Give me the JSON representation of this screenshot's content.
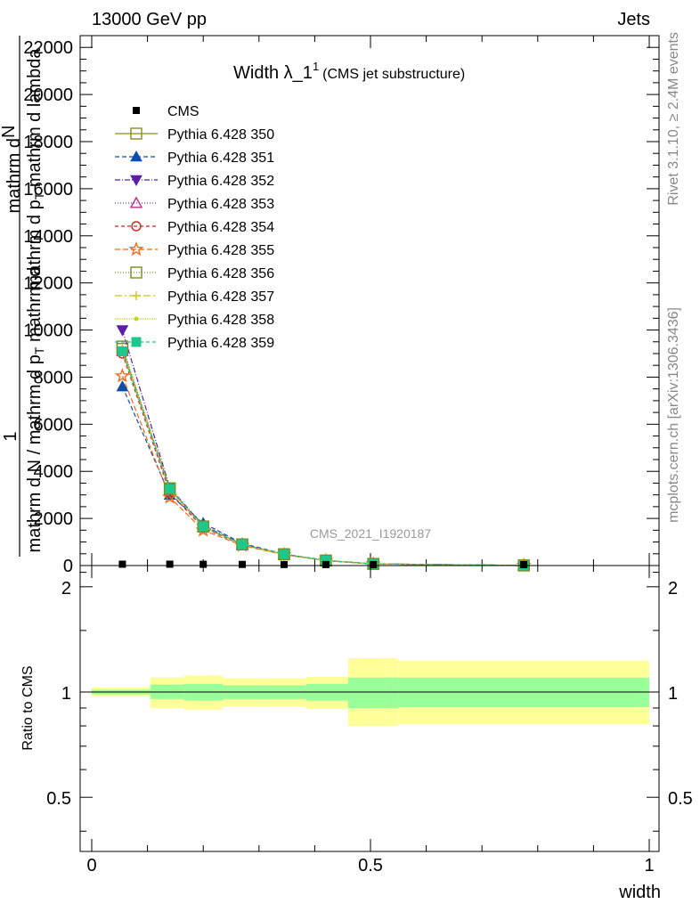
{
  "header": {
    "left": "13000 GeV pp",
    "right": "Jets"
  },
  "title": {
    "main": "Width λ_1",
    "sup": "1",
    "sub": "(CMS jet substructure)"
  },
  "side_labels": {
    "rivet": "Rivet 3.1.10, ≥ 2.4M events",
    "mcplots": "mcplots.cern.ch [arXiv:1306.3436]"
  },
  "watermark": "CMS_2021_I1920187",
  "ylabel_main": {
    "top_line1": "mathrm d",
    "top_line2": "N",
    "one": "1",
    "mid": "mathrm d p",
    "mid_sub": "T",
    "mid_tail": " mathrm d lambda",
    "bottom": "mathrm d N / mathrm d p",
    "bottom_sub": "T",
    "bottom_tail": " mathrm d"
  },
  "ylabel_ratio": "Ratio to CMS",
  "xlabel": "width",
  "colors": {
    "band_inner": "#99ff99",
    "band_outer": "#ffff99",
    "axis": "#000000",
    "gray_text": "#888888"
  },
  "chart_data": {
    "type": "line",
    "title": "Width λ_1^1 (CMS jet substructure)",
    "xlabel": "width",
    "xlim": [
      0,
      1
    ],
    "ylim": [
      0,
      22500
    ],
    "yticks": [
      0,
      2000,
      4000,
      6000,
      8000,
      10000,
      12000,
      14000,
      16000,
      18000,
      20000,
      22000
    ],
    "xticks": [
      0,
      0.5,
      1
    ],
    "xtick_labels": [
      "0",
      "0.5",
      "1"
    ],
    "x": [
      0.055,
      0.14,
      0.2,
      0.27,
      0.345,
      0.42,
      0.505,
      0.775
    ],
    "cms": [
      20,
      20,
      15,
      10,
      5,
      3,
      2,
      1
    ],
    "series": [
      {
        "name": "Pythia 6.428 350",
        "color": "#8c8c1e",
        "marker": "square-open",
        "dash": "",
        "values": [
          9200,
          3250,
          1650,
          900,
          480,
          210,
          70,
          5
        ]
      },
      {
        "name": "Pythia 6.428 351",
        "color": "#0d4ea8",
        "marker": "triangle-up",
        "dash": "5,3",
        "values": [
          7600,
          3000,
          1800,
          940,
          490,
          220,
          72,
          5
        ]
      },
      {
        "name": "Pythia 6.428 352",
        "color": "#5a1ea8",
        "marker": "triangle-down",
        "dash": "6,2,1,2",
        "values": [
          10000,
          3300,
          1700,
          910,
          470,
          210,
          70,
          5
        ]
      },
      {
        "name": "Pythia 6.428 353",
        "color": "#c0278c",
        "marker": "triangle-open",
        "dash": "1,2",
        "values": [
          9100,
          3200,
          1650,
          890,
          470,
          210,
          70,
          5
        ]
      },
      {
        "name": "Pythia 6.428 354",
        "color": "#d62020",
        "marker": "circle-open",
        "dash": "4,3",
        "values": [
          9000,
          3100,
          1600,
          880,
          470,
          210,
          70,
          5
        ]
      },
      {
        "name": "Pythia 6.428 355",
        "color": "#ee6a1a",
        "marker": "star-open",
        "dash": "6,3",
        "values": [
          8050,
          2900,
          1500,
          850,
          460,
          205,
          68,
          5
        ]
      },
      {
        "name": "Pythia 6.428 356",
        "color": "#7a8c1e",
        "marker": "square-open",
        "dash": "1,2",
        "values": [
          9300,
          3280,
          1660,
          900,
          480,
          212,
          71,
          5
        ]
      },
      {
        "name": "Pythia 6.428 357",
        "color": "#d2c21e",
        "marker": "cross",
        "dash": "8,3,2,3",
        "values": [
          9150,
          3250,
          1650,
          895,
          478,
          211,
          70,
          5
        ]
      },
      {
        "name": "Pythia 6.428 358",
        "color": "#c8d21e",
        "marker": "dot",
        "dash": "1,1",
        "values": [
          9100,
          3230,
          1640,
          892,
          476,
          210,
          70,
          5
        ]
      },
      {
        "name": "Pythia 6.428 359",
        "color": "#1ec88c",
        "marker": "square",
        "dash": "4,3",
        "values": [
          9100,
          3260,
          1660,
          900,
          480,
          212,
          71,
          5
        ]
      }
    ],
    "cms_legend": "CMS",
    "ratio": {
      "ylabel": "Ratio to CMS",
      "ylim": [
        0.35,
        2.3
      ],
      "yticks": [
        0.5,
        1,
        2
      ],
      "ytick_labels": [
        "0.5",
        "1",
        "2"
      ],
      "bins": [
        {
          "lo": 0.0,
          "hi": 0.105,
          "inner": [
            0.985,
            1.015
          ],
          "outer": [
            0.97,
            1.03
          ]
        },
        {
          "lo": 0.105,
          "hi": 0.165,
          "inner": [
            0.955,
            1.05
          ],
          "outer": [
            0.9,
            1.1
          ]
        },
        {
          "lo": 0.165,
          "hi": 0.235,
          "inner": [
            0.945,
            1.055
          ],
          "outer": [
            0.89,
            1.115
          ]
        },
        {
          "lo": 0.235,
          "hi": 0.31,
          "inner": [
            0.955,
            1.045
          ],
          "outer": [
            0.91,
            1.095
          ]
        },
        {
          "lo": 0.31,
          "hi": 0.385,
          "inner": [
            0.955,
            1.045
          ],
          "outer": [
            0.91,
            1.095
          ]
        },
        {
          "lo": 0.385,
          "hi": 0.46,
          "inner": [
            0.945,
            1.055
          ],
          "outer": [
            0.895,
            1.105
          ]
        },
        {
          "lo": 0.46,
          "hi": 0.55,
          "inner": [
            0.9,
            1.1
          ],
          "outer": [
            0.8,
            1.25
          ]
        },
        {
          "lo": 0.55,
          "hi": 1.0,
          "inner": [
            0.905,
            1.1
          ],
          "outer": [
            0.81,
            1.23
          ]
        }
      ]
    }
  }
}
